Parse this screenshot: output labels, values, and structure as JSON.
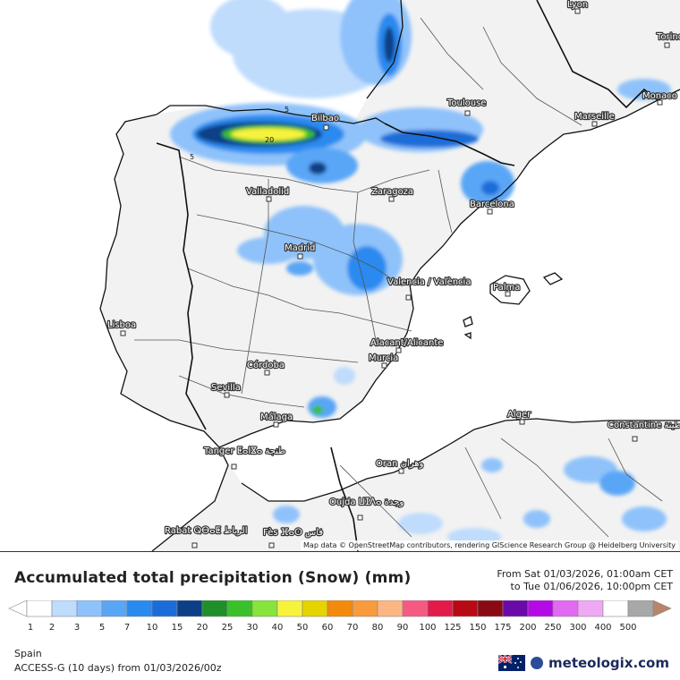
{
  "map": {
    "cities": [
      {
        "name": "Lyon"
      },
      {
        "name": "Torino"
      },
      {
        "name": "Toulouse"
      },
      {
        "name": "Monaco"
      },
      {
        "name": "Marseille"
      },
      {
        "name": "Bilbao"
      },
      {
        "name": "Valladolid"
      },
      {
        "name": "Zaragoza"
      },
      {
        "name": "Barcelona"
      },
      {
        "name": "Madrid"
      },
      {
        "name": "Valencia / València"
      },
      {
        "name": "Palma"
      },
      {
        "name": "Lisboa"
      },
      {
        "name": "Alacant/Alicante"
      },
      {
        "name": "Murcia"
      },
      {
        "name": "Córdoba"
      },
      {
        "name": "Sevilla"
      },
      {
        "name": "Málaga"
      },
      {
        "name": "Alger"
      },
      {
        "name": "Constantine ‎قسنطينة"
      },
      {
        "name": "Tanger ⵟⴰⵏⴵⴰ طنجة"
      },
      {
        "name": "Oran وهران"
      },
      {
        "name": "Oujda ⵡⵊⴷⴰ وجدة"
      },
      {
        "name": "Rabat ⵕⴱⴰⵟ الرباط"
      },
      {
        "name": "Fès ⴼⴰⵙ فاس"
      }
    ],
    "contour_labels": [
      "5",
      "5",
      "20"
    ],
    "attribution": "Map data © OpenStreetMap contributors, rendering GIScience Research Group @ Heidelberg University"
  },
  "header": {
    "title": "Accumulated total precipitation (Snow) (mm)",
    "period_from": "From Sat 01/03/2026, 01:00am CET",
    "period_to": "to Tue 01/06/2026, 10:00pm CET"
  },
  "legend": {
    "items": [
      {
        "label": "1",
        "color": "#ffffff"
      },
      {
        "label": "2",
        "color": "#bfdcfd"
      },
      {
        "label": "3",
        "color": "#8fc2fa"
      },
      {
        "label": "5",
        "color": "#5aa6f6"
      },
      {
        "label": "7",
        "color": "#2a8aef"
      },
      {
        "label": "10",
        "color": "#1a6dd8"
      },
      {
        "label": "15",
        "color": "#0c3f86"
      },
      {
        "label": "20",
        "color": "#1f8f2a"
      },
      {
        "label": "25",
        "color": "#39c02a"
      },
      {
        "label": "30",
        "color": "#86e43a"
      },
      {
        "label": "40",
        "color": "#f7f33c"
      },
      {
        "label": "50",
        "color": "#e6d400"
      },
      {
        "label": "60",
        "color": "#f48a0c"
      },
      {
        "label": "70",
        "color": "#f99a3c"
      },
      {
        "label": "80",
        "color": "#fbb682"
      },
      {
        "label": "90",
        "color": "#f55a82"
      },
      {
        "label": "100",
        "color": "#e11a4a"
      },
      {
        "label": "125",
        "color": "#b80a14"
      },
      {
        "label": "150",
        "color": "#8a0a14"
      },
      {
        "label": "175",
        "color": "#6a0aa8"
      },
      {
        "label": "200",
        "color": "#b40ae6"
      },
      {
        "label": "250",
        "color": "#e16af0"
      },
      {
        "label": "300",
        "color": "#f0a8f4"
      },
      {
        "label": "400",
        "color": "#ffffff"
      },
      {
        "label": "500",
        "color": "#a8a8a8"
      }
    ],
    "end_color": "#b8846a"
  },
  "footer": {
    "region": "Spain",
    "model": "ACCESS-G (10 days) from 01/03/2026/00z",
    "brand": "meteologix.com",
    "flag": "australia-flag-icon"
  }
}
